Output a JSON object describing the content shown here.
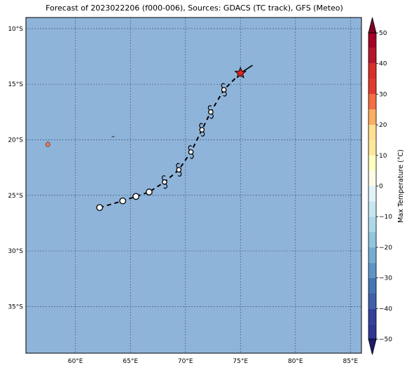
{
  "title": "Forecast of 2023022206 (f000-006), Sources: GDACS (TC track), GFS (Meteo)",
  "map": {
    "ocean_color": "#8fb4d9",
    "lon_range": [
      55.5,
      86.0
    ],
    "lat_range": [
      -39.2,
      -9.0
    ],
    "lon_ticks": [
      {
        "value": 60,
        "label": "60°E"
      },
      {
        "value": 65,
        "label": "65°E"
      },
      {
        "value": 70,
        "label": "70°E"
      },
      {
        "value": 75,
        "label": "75°E"
      },
      {
        "value": 80,
        "label": "80°E"
      },
      {
        "value": 85,
        "label": "85°E"
      }
    ],
    "lat_ticks": [
      {
        "value": -10,
        "label": "10°S"
      },
      {
        "value": -15,
        "label": "15°S"
      },
      {
        "value": -20,
        "label": "20°S"
      },
      {
        "value": -25,
        "label": "25°S"
      },
      {
        "value": -30,
        "label": "30°S"
      },
      {
        "value": -35,
        "label": "35°S"
      }
    ],
    "gridlines": true,
    "land": [
      {
        "name": "Reunion",
        "color": "#ec7a5a",
        "lon": 57.5,
        "lat": -20.4
      }
    ]
  },
  "track": {
    "points": [
      {
        "lon": 76.1,
        "lat": -13.3
      },
      {
        "lon": 75.0,
        "lat": -14.0
      },
      {
        "lon": 73.5,
        "lat": -15.5
      },
      {
        "lon": 72.3,
        "lat": -17.5
      },
      {
        "lon": 71.5,
        "lat": -19.1
      },
      {
        "lon": 70.5,
        "lat": -21.1
      },
      {
        "lon": 69.4,
        "lat": -22.7
      },
      {
        "lon": 68.1,
        "lat": -23.8
      },
      {
        "lon": 66.7,
        "lat": -24.7
      },
      {
        "lon": 65.5,
        "lat": -25.1
      },
      {
        "lon": 64.3,
        "lat": -25.5
      },
      {
        "lon": 62.2,
        "lat": -26.1
      }
    ],
    "current_position": {
      "lon": 75.0,
      "lat": -14.0,
      "color": "#e8231e"
    },
    "storm_markers": [
      {
        "lon": 73.5,
        "lat": -15.5
      },
      {
        "lon": 72.3,
        "lat": -17.5
      },
      {
        "lon": 71.5,
        "lat": -19.1
      },
      {
        "lon": 70.5,
        "lat": -21.1
      },
      {
        "lon": 69.4,
        "lat": -22.7
      },
      {
        "lon": 68.1,
        "lat": -23.8
      }
    ],
    "circle_markers": [
      {
        "lon": 66.7,
        "lat": -24.7
      },
      {
        "lon": 65.5,
        "lat": -25.1
      },
      {
        "lon": 64.3,
        "lat": -25.5
      },
      {
        "lon": 62.2,
        "lat": -26.1
      }
    ]
  },
  "colorbar": {
    "label": "Max Temperature (°C)",
    "range": [
      -50,
      50
    ],
    "ticks": [
      {
        "value": 50,
        "label": "50"
      },
      {
        "value": 40,
        "label": "40"
      },
      {
        "value": 30,
        "label": "30"
      },
      {
        "value": 20,
        "label": "20"
      },
      {
        "value": 10,
        "label": "10"
      },
      {
        "value": 0,
        "label": "0"
      },
      {
        "value": -10,
        "label": "−10"
      },
      {
        "value": -20,
        "label": "−20"
      },
      {
        "value": -30,
        "label": "−30"
      },
      {
        "value": -40,
        "label": "−40"
      },
      {
        "value": -50,
        "label": "−50"
      }
    ],
    "bands": [
      {
        "from": -50,
        "to": -45,
        "color": "#313695"
      },
      {
        "from": -45,
        "to": -40,
        "color": "#353f9c"
      },
      {
        "from": -40,
        "to": -35,
        "color": "#4060a8"
      },
      {
        "from": -35,
        "to": -30,
        "color": "#4575b4"
      },
      {
        "from": -30,
        "to": -25,
        "color": "#5e95c7"
      },
      {
        "from": -25,
        "to": -20,
        "color": "#74add1"
      },
      {
        "from": -20,
        "to": -15,
        "color": "#92c5de"
      },
      {
        "from": -15,
        "to": -10,
        "color": "#abd9e9"
      },
      {
        "from": -10,
        "to": -5,
        "color": "#c6e6f1"
      },
      {
        "from": -5,
        "to": 0,
        "color": "#e0f3f8"
      },
      {
        "from": 0,
        "to": 5,
        "color": "#fbfbe7"
      },
      {
        "from": 5,
        "to": 10,
        "color": "#ffffbf"
      },
      {
        "from": 10,
        "to": 15,
        "color": "#fee79a"
      },
      {
        "from": 15,
        "to": 20,
        "color": "#fee090"
      },
      {
        "from": 20,
        "to": 25,
        "color": "#fdae61"
      },
      {
        "from": 25,
        "to": 30,
        "color": "#f46d43"
      },
      {
        "from": 30,
        "to": 35,
        "color": "#e03b2c"
      },
      {
        "from": 35,
        "to": 40,
        "color": "#d73027"
      },
      {
        "from": 40,
        "to": 45,
        "color": "#b5162b"
      },
      {
        "from": 45,
        "to": 50,
        "color": "#a50026"
      }
    ],
    "extend_low_color": "#1c1b6c",
    "extend_high_color": "#7f0026"
  }
}
